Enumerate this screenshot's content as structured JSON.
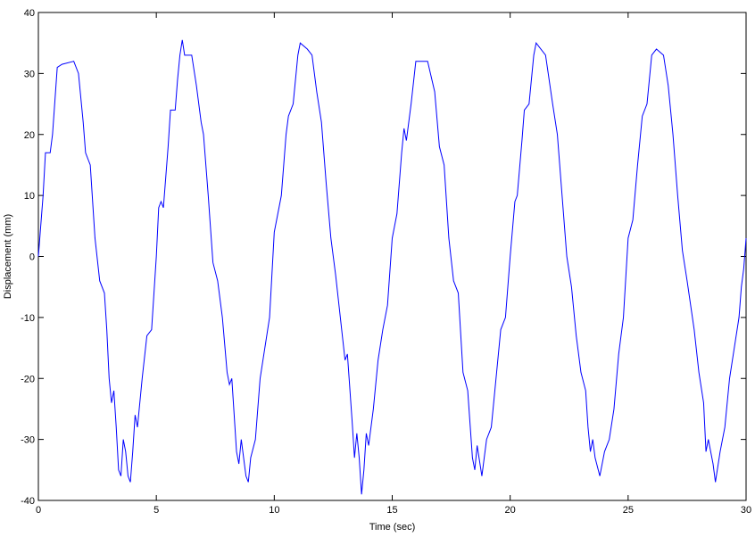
{
  "chart_data": {
    "type": "line",
    "x_label": "Time (sec)",
    "y_label": "Displacement (mm)",
    "x": [
      0,
      0.1,
      0.2,
      0.3,
      0.5,
      0.6,
      0.8,
      1.0,
      1.5,
      1.7,
      1.9,
      2.0,
      2.2,
      2.4,
      2.6,
      2.8,
      2.9,
      3.0,
      3.1,
      3.2,
      3.3,
      3.4,
      3.5,
      3.6,
      3.7,
      3.8,
      3.9,
      4.0,
      4.1,
      4.2,
      4.4,
      4.6,
      4.8,
      5.0,
      5.1,
      5.2,
      5.3,
      5.5,
      5.6,
      5.8,
      5.9,
      6.0,
      6.1,
      6.2,
      6.5,
      6.7,
      6.9,
      7.0,
      7.2,
      7.4,
      7.6,
      7.8,
      8.0,
      8.1,
      8.2,
      8.3,
      8.4,
      8.5,
      8.6,
      8.7,
      8.8,
      8.9,
      9.0,
      9.2,
      9.4,
      9.6,
      9.8,
      10.0,
      10.1,
      10.3,
      10.5,
      10.6,
      10.8,
      11.0,
      11.1,
      11.4,
      11.6,
      11.8,
      12.0,
      12.2,
      12.4,
      12.6,
      12.8,
      13.0,
      13.1,
      13.3,
      13.4,
      13.5,
      13.6,
      13.7,
      13.8,
      13.9,
      14.0,
      14.2,
      14.4,
      14.6,
      14.8,
      15.0,
      15.2,
      15.4,
      15.5,
      15.6,
      15.8,
      16.0,
      16.5,
      16.8,
      17.0,
      17.2,
      17.4,
      17.6,
      17.8,
      18.0,
      18.2,
      18.4,
      18.5,
      18.6,
      18.8,
      19.0,
      19.2,
      19.4,
      19.6,
      19.8,
      20.0,
      20.2,
      20.3,
      20.5,
      20.6,
      20.8,
      21.0,
      21.1,
      21.5,
      21.8,
      22.0,
      22.2,
      22.4,
      22.6,
      22.8,
      23.0,
      23.2,
      23.3,
      23.4,
      23.5,
      23.6,
      23.8,
      24.0,
      24.2,
      24.4,
      24.6,
      24.8,
      25.0,
      25.2,
      25.4,
      25.6,
      25.8,
      26.0,
      26.2,
      26.5,
      26.7,
      26.9,
      27.1,
      27.3,
      27.5,
      27.8,
      28.0,
      28.2,
      28.3,
      28.4,
      28.6,
      28.7,
      28.9,
      29.1,
      29.3,
      29.5,
      29.7,
      29.8,
      29.9,
      30.0
    ],
    "series": [
      {
        "color": "#0000ff",
        "values": [
          0,
          5,
          10,
          17,
          17,
          20,
          31,
          31.5,
          32,
          30,
          22,
          17,
          15,
          3,
          -4,
          -6,
          -12,
          -20,
          -24,
          -22,
          -28,
          -35,
          -36,
          -30,
          -32,
          -36,
          -37,
          -32,
          -26,
          -28,
          -20,
          -13,
          -12,
          0,
          8,
          9,
          8,
          18,
          24,
          24,
          29,
          33,
          35.5,
          33,
          33,
          28,
          22,
          20,
          10,
          -1,
          -4,
          -10,
          -19,
          -21,
          -20,
          -26,
          -32,
          -34,
          -30,
          -33,
          -36,
          -37,
          -33,
          -30,
          -20,
          -15,
          -10,
          4,
          6,
          10,
          20,
          23,
          25,
          33,
          35,
          34,
          33,
          27,
          22,
          12,
          3,
          -3,
          -10,
          -17,
          -16,
          -27,
          -33,
          -29,
          -33,
          -39,
          -35,
          -29,
          -31,
          -25,
          -17,
          -12,
          -8,
          3,
          7,
          17,
          21,
          19,
          25,
          32,
          32,
          27,
          18,
          15,
          3,
          -4,
          -6,
          -19,
          -22,
          -33,
          -35,
          -31,
          -36,
          -30,
          -28,
          -20,
          -12,
          -10,
          0,
          9,
          10,
          19,
          24,
          25,
          33,
          35,
          33,
          25,
          20,
          10,
          0,
          -5,
          -13,
          -19,
          -22,
          -28,
          -32,
          -30,
          -33,
          -36,
          -32,
          -30,
          -25,
          -16,
          -10,
          3,
          6,
          15,
          23,
          25,
          33,
          34,
          33,
          28,
          20,
          10,
          1,
          -4,
          -12,
          -19,
          -24,
          -32,
          -30,
          -34,
          -37,
          -32,
          -28,
          -20,
          -15,
          -10,
          -5,
          -2,
          3
        ]
      }
    ],
    "xlim": [
      0,
      30
    ],
    "xticks": [
      0,
      5,
      10,
      15,
      20,
      25,
      30
    ],
    "ylim": [
      -40,
      40
    ],
    "yticks": [
      -40,
      -30,
      -20,
      -10,
      0,
      10,
      20,
      30,
      40
    ]
  }
}
